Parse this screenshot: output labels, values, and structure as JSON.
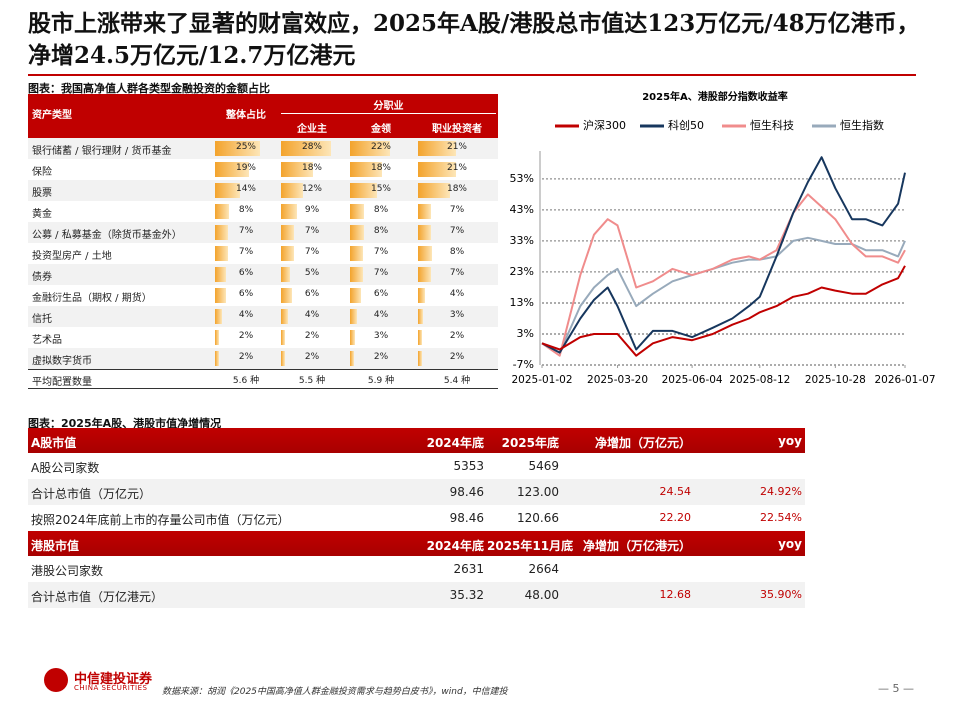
{
  "title": "股市上涨带来了显著的财富效应，2025年A股/港股总市值达123万亿元/48万亿港币，净增24.5万亿元/12.7万亿港元",
  "allocation_table": {
    "caption": "图表：我国高净值人群各类型金融投资的金额占比",
    "headers": {
      "asset": "资产类型",
      "overall": "整体占比",
      "by_occupation": "分职业",
      "occupations": [
        "企业主",
        "金领",
        "职业投资者"
      ]
    },
    "rows": [
      {
        "label": "银行储蓄 / 银行理财 / 货币基金",
        "values": [
          25,
          28,
          22,
          21
        ],
        "value_labels": [
          "25%",
          "28%",
          "22%",
          "21%"
        ]
      },
      {
        "label": "保险",
        "values": [
          19,
          18,
          18,
          21
        ],
        "value_labels": [
          "19%",
          "18%",
          "18%",
          "21%"
        ]
      },
      {
        "label": "股票",
        "values": [
          14,
          12,
          15,
          18
        ],
        "value_labels": [
          "14%",
          "12%",
          "15%",
          "18%"
        ]
      },
      {
        "label": "黄金",
        "values": [
          8,
          9,
          8,
          7
        ],
        "value_labels": [
          "8%",
          "9%",
          "8%",
          "7%"
        ]
      },
      {
        "label": "公募 / 私募基金（除货币基金外）",
        "values": [
          7,
          7,
          8,
          7
        ],
        "value_labels": [
          "7%",
          "7%",
          "8%",
          "7%"
        ]
      },
      {
        "label": "投资型房产 / 土地",
        "values": [
          7,
          7,
          7,
          8
        ],
        "value_labels": [
          "7%",
          "7%",
          "7%",
          "8%"
        ]
      },
      {
        "label": "债券",
        "values": [
          6,
          5,
          7,
          7
        ],
        "value_labels": [
          "6%",
          "5%",
          "7%",
          "7%"
        ]
      },
      {
        "label": "金融衍生品（期权 / 期货）",
        "values": [
          6,
          6,
          6,
          4
        ],
        "value_labels": [
          "6%",
          "6%",
          "6%",
          "4%"
        ]
      },
      {
        "label": "信托",
        "values": [
          4,
          4,
          4,
          3
        ],
        "value_labels": [
          "4%",
          "4%",
          "4%",
          "3%"
        ]
      },
      {
        "label": "艺术品",
        "values": [
          2,
          2,
          3,
          2
        ],
        "value_labels": [
          "2%",
          "2%",
          "3%",
          "2%"
        ]
      },
      {
        "label": "虚拟数字货币",
        "values": [
          2,
          2,
          2,
          2
        ],
        "value_labels": [
          "2%",
          "2%",
          "2%",
          "2%"
        ]
      }
    ],
    "average": {
      "label": "平均配置数量",
      "values": [
        "5.6 种",
        "5.5 种",
        "5.9 种",
        "5.4 种"
      ]
    }
  },
  "chart_data": {
    "type": "line",
    "title": "2025年A、港股部分指数收益率",
    "legend": "top",
    "grid": true,
    "x": [
      "2025-01-02",
      "2025-01-20",
      "2025-02-10",
      "2025-02-24",
      "2025-03-10",
      "2025-03-20",
      "2025-04-08",
      "2025-04-25",
      "2025-05-15",
      "2025-06-04",
      "2025-06-25",
      "2025-07-15",
      "2025-08-01",
      "2025-08-12",
      "2025-08-29",
      "2025-09-15",
      "2025-09-30",
      "2025-10-14",
      "2025-10-28",
      "2025-11-14",
      "2025-11-28",
      "2025-12-15",
      "2025-12-31",
      "2026-01-07"
    ],
    "xlim": [
      "2025-01-02",
      "2026-01-07"
    ],
    "xticks": [
      "2025-01-02",
      "2025-03-20",
      "2025-06-04",
      "2025-08-12",
      "2025-10-28",
      "2026-01-07"
    ],
    "ylim": [
      -7,
      62
    ],
    "yticks": [
      {
        "value": -7,
        "label": "-7%"
      },
      {
        "value": 3,
        "label": "3%"
      },
      {
        "value": 13,
        "label": "13%"
      },
      {
        "value": 23,
        "label": "23%"
      },
      {
        "value": 33,
        "label": "33%"
      },
      {
        "value": 43,
        "label": "43%"
      },
      {
        "value": 53,
        "label": "53%"
      }
    ],
    "series": [
      {
        "name": "沪深300",
        "color": "#c00000",
        "values": [
          0,
          -2,
          2,
          3,
          3,
          3,
          -4,
          0,
          2,
          1,
          3,
          6,
          8,
          10,
          12,
          15,
          16,
          18,
          17,
          16,
          16,
          19,
          21,
          25
        ]
      },
      {
        "name": "科创50",
        "color": "#17375e",
        "values": [
          0,
          -3,
          8,
          14,
          18,
          12,
          -2,
          4,
          4,
          2,
          5,
          8,
          12,
          15,
          28,
          42,
          52,
          60,
          50,
          40,
          40,
          38,
          45,
          55
        ]
      },
      {
        "name": "恒生科技",
        "color": "#f08c8c",
        "values": [
          0,
          -4,
          22,
          35,
          40,
          38,
          18,
          20,
          24,
          22,
          24,
          27,
          28,
          27,
          30,
          42,
          48,
          44,
          40,
          32,
          28,
          28,
          26,
          30
        ]
      },
      {
        "name": "恒生指数",
        "color": "#98aabb",
        "values": [
          0,
          -3,
          12,
          18,
          22,
          24,
          12,
          16,
          20,
          22,
          24,
          26,
          27,
          27,
          28,
          33,
          34,
          33,
          32,
          32,
          30,
          30,
          28,
          33
        ]
      }
    ]
  },
  "market_table": {
    "caption": "图表：2025年A股、港股市值净增情况",
    "sections": [
      {
        "header": [
          "A股市值",
          "2024年底",
          "2025年底",
          "净增加（万亿元）",
          "yoy"
        ],
        "rows": [
          [
            "A股公司家数",
            "5353",
            "5469"
          ],
          [
            "合计总市值（万亿元）",
            "98.46",
            "123.00",
            "24.54",
            "24.92%"
          ],
          [
            "按照2024年底前上市的存量公司市值（万亿元）",
            "98.46",
            "120.66",
            "22.20",
            "22.54%"
          ]
        ]
      },
      {
        "header": [
          "港股市值",
          "2024年底",
          "2025年11月底",
          "净增加（万亿港元）",
          "yoy"
        ],
        "rows": [
          [
            "港股公司家数",
            "2631",
            "2664"
          ],
          [
            "合计总市值（万亿港元）",
            "35.32",
            "48.00",
            "12.68",
            "35.90%"
          ]
        ]
      }
    ]
  },
  "footer": {
    "logo_name": "中信建投证券",
    "logo_en": "CHINA SECURITIES",
    "source": "数据来源：胡润《2025中国高净值人群金融投资需求与趋势白皮书》，wind，中信建投",
    "page": "5"
  }
}
